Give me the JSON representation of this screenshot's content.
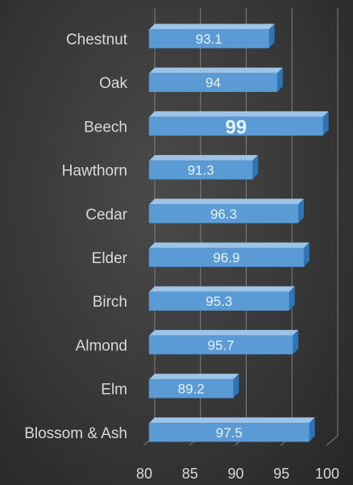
{
  "chart_data": {
    "type": "bar",
    "orientation": "horizontal",
    "style": "3d",
    "categories": [
      "Chestnut",
      "Oak",
      "Beech",
      "Hawthorn",
      "Cedar",
      "Elder",
      "Birch",
      "Almond",
      "Elm",
      "Blossom & Ash"
    ],
    "values": [
      93.1,
      94,
      99,
      91.3,
      96.3,
      96.9,
      95.3,
      95.7,
      89.2,
      97.5
    ],
    "xlim": [
      80,
      100
    ],
    "xticks": [
      80,
      85,
      90,
      95,
      100
    ],
    "grid": true,
    "legend": "none",
    "highlight": {
      "category": "Beech",
      "color": "#e0001b"
    },
    "colors": {
      "bar_front": "#5b9bd5",
      "bar_top": "#9dc3e6",
      "bar_side": "#2e75b6",
      "gridline": "#808080",
      "label_text": "#d9d9d9",
      "data_label": "#e8f1fb"
    }
  }
}
